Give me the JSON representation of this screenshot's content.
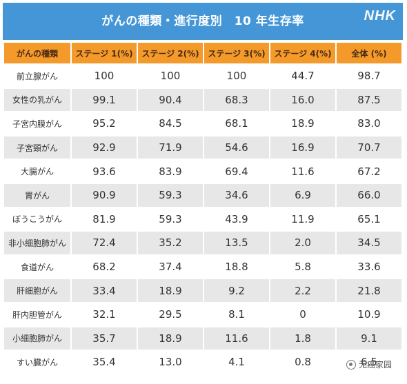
{
  "header": {
    "title": "がんの種類・進行度別　10 年生存率",
    "brand": "NHK"
  },
  "colors": {
    "title_bar": "#4596d6",
    "header_row": "#f39a2b",
    "stripe": "#e7e7e7"
  },
  "chart_data": {
    "type": "table",
    "title": "がんの種類・進行度別　10 年生存率",
    "columns": [
      "がんの種類",
      "ステージ 1(%)",
      "ステージ 2(%)",
      "ステージ 3(%)",
      "ステージ 4(%)",
      "全体 (%)"
    ],
    "rows": [
      [
        "前立腺がん",
        "100",
        "100",
        "100",
        "44.7",
        "98.7"
      ],
      [
        "女性の乳がん",
        "99.1",
        "90.4",
        "68.3",
        "16.0",
        "87.5"
      ],
      [
        "子宮内膜がん",
        "95.2",
        "84.5",
        "68.1",
        "18.9",
        "83.0"
      ],
      [
        "子宮頸がん",
        "92.9",
        "71.9",
        "54.6",
        "16.9",
        "70.7"
      ],
      [
        "大腸がん",
        "93.6",
        "83.9",
        "69.4",
        "11.6",
        "67.2"
      ],
      [
        "胃がん",
        "90.9",
        "59.3",
        "34.6",
        "6.9",
        "66.0"
      ],
      [
        "ぼうこうがん",
        "81.9",
        "59.3",
        "43.9",
        "11.9",
        "65.1"
      ],
      [
        "非小細胞肺がん",
        "72.4",
        "35.2",
        "13.5",
        "2.0",
        "34.5"
      ],
      [
        "食道がん",
        "68.2",
        "37.4",
        "18.8",
        "5.8",
        "33.6"
      ],
      [
        "肝細胞がん",
        "33.4",
        "18.9",
        "9.2",
        "2.2",
        "21.8"
      ],
      [
        "肝内胆管がん",
        "32.1",
        "29.5",
        "8.1",
        "0",
        "10.9"
      ],
      [
        "小細胞肺がん",
        "35.7",
        "18.9",
        "11.6",
        "1.8",
        "9.1"
      ],
      [
        "すい臓がん",
        "35.4",
        "13.0",
        "4.1",
        "0.8",
        "6.5"
      ]
    ]
  },
  "watermark": {
    "icon": "wechat-logo-icon",
    "text": "无癌家园"
  }
}
